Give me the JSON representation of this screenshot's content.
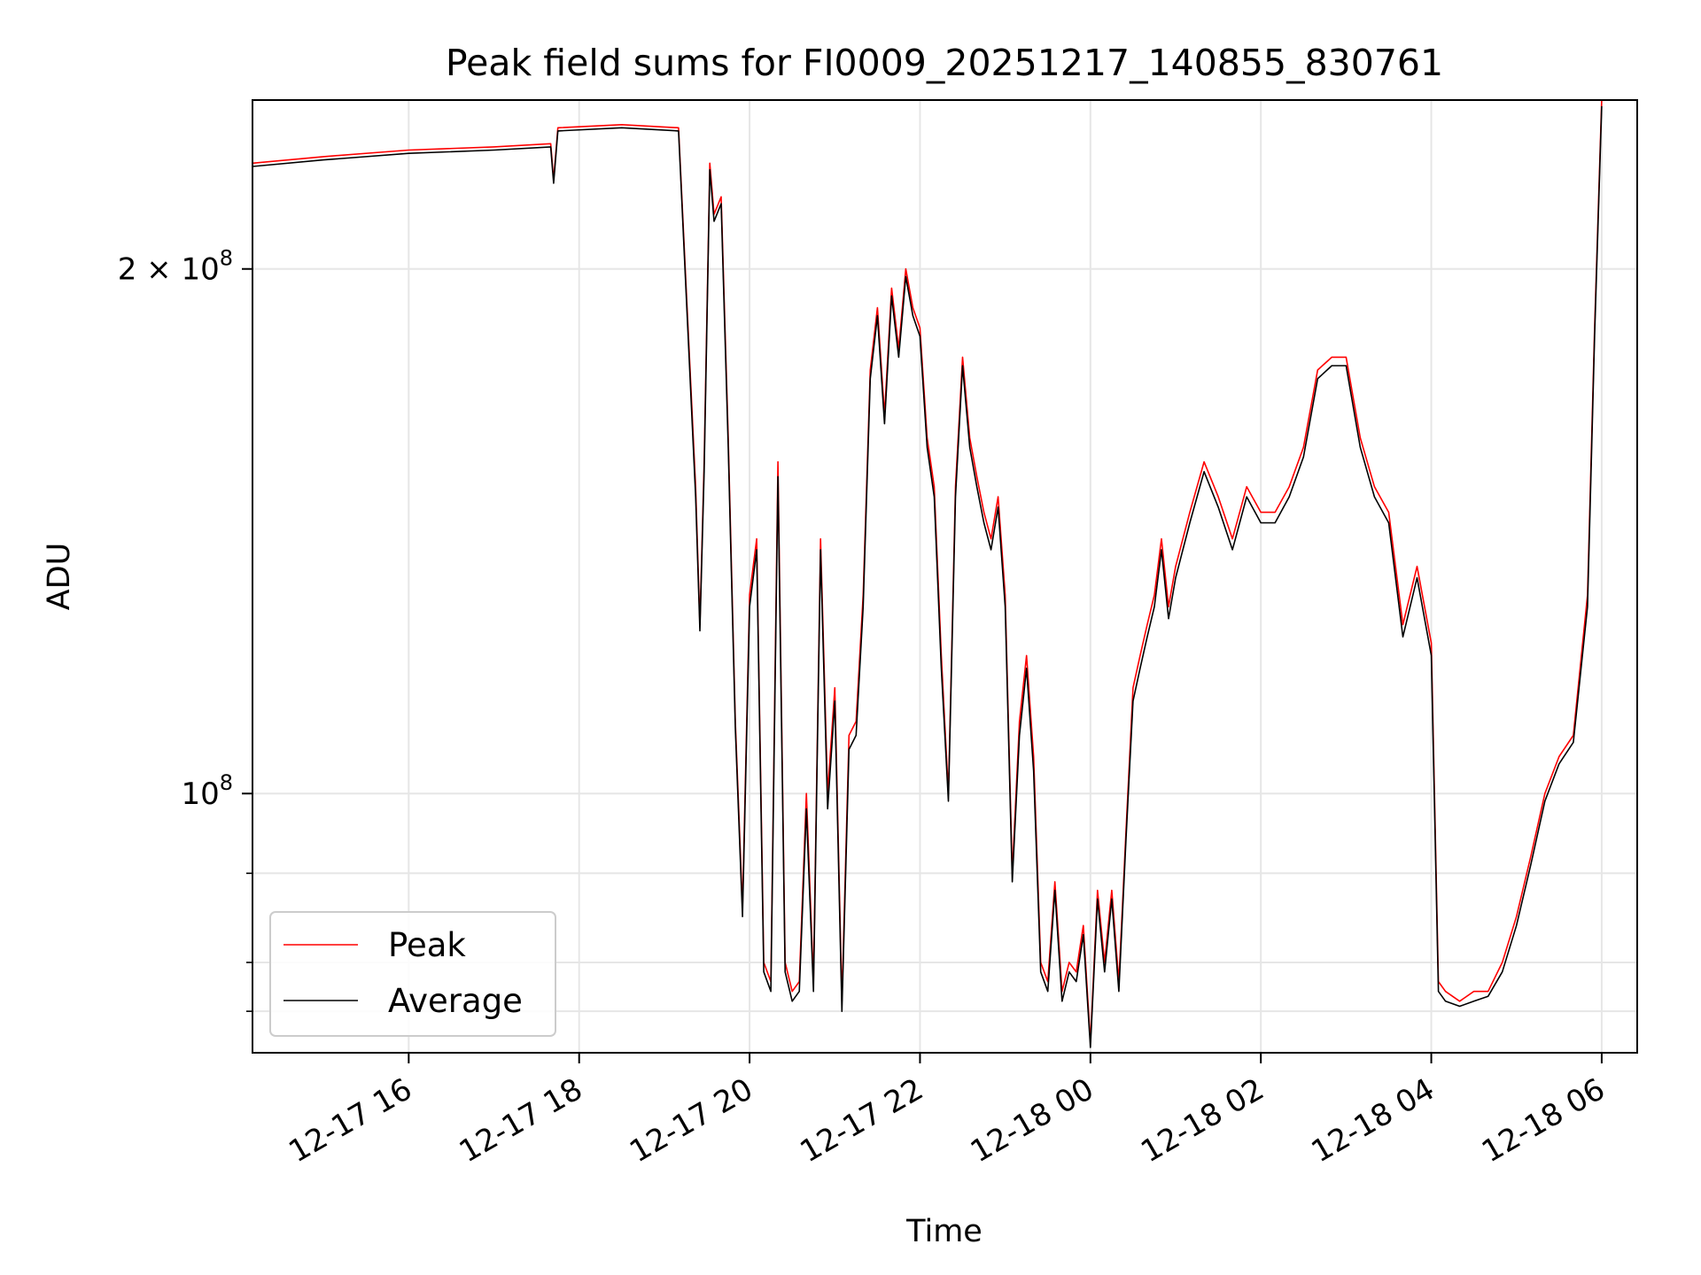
{
  "chart_data": {
    "type": "line",
    "title": "Peak field sums for FI0009_20251217_140855_830761",
    "xlabel": "Time",
    "ylabel": "ADU",
    "y_scale": "log",
    "ylim": [
      71000000,
      250000000
    ],
    "xlim": [
      "2025-12-17 14:10",
      "2025-12-18 06:25"
    ],
    "grid": true,
    "legend_position": "lower-left",
    "x_tick_labels": [
      {
        "t": "2025-12-17 16:00",
        "label": "12-17 16"
      },
      {
        "t": "2025-12-17 18:00",
        "label": "12-17 18"
      },
      {
        "t": "2025-12-17 20:00",
        "label": "12-17 20"
      },
      {
        "t": "2025-12-17 22:00",
        "label": "12-17 22"
      },
      {
        "t": "2025-12-18 00:00",
        "label": "12-18 00"
      },
      {
        "t": "2025-12-18 02:00",
        "label": "12-18 02"
      },
      {
        "t": "2025-12-18 04:00",
        "label": "12-18 04"
      },
      {
        "t": "2025-12-18 06:00",
        "label": "12-18 06"
      }
    ],
    "y_tick_labels": [
      {
        "value": 100000000,
        "base": "10",
        "exp": "8",
        "coef": ""
      },
      {
        "value": 200000000,
        "base": "10",
        "exp": "8",
        "coef": "2 × "
      }
    ],
    "y_minor_ticks": [
      75000000,
      80000000,
      90000000
    ],
    "series": [
      {
        "name": "Peak",
        "color": "#ff0000",
        "x": [
          "2025-12-17 14:10",
          "2025-12-17 15:00",
          "2025-12-17 16:00",
          "2025-12-17 17:00",
          "2025-12-17 17:40",
          "2025-12-17 17:42",
          "2025-12-17 17:45",
          "2025-12-17 18:30",
          "2025-12-17 19:10",
          "2025-12-17 19:22",
          "2025-12-17 19:25",
          "2025-12-17 19:28",
          "2025-12-17 19:32",
          "2025-12-17 19:35",
          "2025-12-17 19:40",
          "2025-12-17 19:45",
          "2025-12-17 19:50",
          "2025-12-17 19:55",
          "2025-12-17 20:00",
          "2025-12-17 20:05",
          "2025-12-17 20:10",
          "2025-12-17 20:15",
          "2025-12-17 20:20",
          "2025-12-17 20:25",
          "2025-12-17 20:30",
          "2025-12-17 20:35",
          "2025-12-17 20:40",
          "2025-12-17 20:45",
          "2025-12-17 20:50",
          "2025-12-17 20:55",
          "2025-12-17 21:00",
          "2025-12-17 21:05",
          "2025-12-17 21:10",
          "2025-12-17 21:15",
          "2025-12-17 21:20",
          "2025-12-17 21:25",
          "2025-12-17 21:30",
          "2025-12-17 21:35",
          "2025-12-17 21:40",
          "2025-12-17 21:45",
          "2025-12-17 21:50",
          "2025-12-17 21:55",
          "2025-12-17 22:00",
          "2025-12-17 22:05",
          "2025-12-17 22:10",
          "2025-12-17 22:15",
          "2025-12-17 22:20",
          "2025-12-17 22:25",
          "2025-12-17 22:30",
          "2025-12-17 22:35",
          "2025-12-17 22:40",
          "2025-12-17 22:45",
          "2025-12-17 22:50",
          "2025-12-17 22:55",
          "2025-12-17 23:00",
          "2025-12-17 23:05",
          "2025-12-17 23:10",
          "2025-12-17 23:15",
          "2025-12-17 23:20",
          "2025-12-17 23:25",
          "2025-12-17 23:30",
          "2025-12-17 23:35",
          "2025-12-17 23:40",
          "2025-12-17 23:45",
          "2025-12-17 23:50",
          "2025-12-17 23:55",
          "2025-12-18 00:00",
          "2025-12-18 00:05",
          "2025-12-18 00:10",
          "2025-12-18 00:15",
          "2025-12-18 00:20",
          "2025-12-18 00:25",
          "2025-12-18 00:30",
          "2025-12-18 00:35",
          "2025-12-18 00:40",
          "2025-12-18 00:45",
          "2025-12-18 00:50",
          "2025-12-18 00:55",
          "2025-12-18 01:00",
          "2025-12-18 01:10",
          "2025-12-18 01:20",
          "2025-12-18 01:30",
          "2025-12-18 01:40",
          "2025-12-18 01:50",
          "2025-12-18 02:00",
          "2025-12-18 02:10",
          "2025-12-18 02:20",
          "2025-12-18 02:30",
          "2025-12-18 02:40",
          "2025-12-18 02:50",
          "2025-12-18 03:00",
          "2025-12-18 03:10",
          "2025-12-18 03:20",
          "2025-12-18 03:30",
          "2025-12-18 03:40",
          "2025-12-18 03:50",
          "2025-12-18 04:00",
          "2025-12-18 04:05",
          "2025-12-18 04:10",
          "2025-12-18 04:20",
          "2025-12-18 04:30",
          "2025-12-18 04:40",
          "2025-12-18 04:50",
          "2025-12-18 05:00",
          "2025-12-18 05:10",
          "2025-12-18 05:20",
          "2025-12-18 05:30",
          "2025-12-18 05:40",
          "2025-12-18 05:50",
          "2025-12-18 05:55",
          "2025-12-18 06:00"
        ],
        "values": [
          230000000,
          232000000,
          234000000,
          235000000,
          236000000,
          225000000,
          241000000,
          242000000,
          241000000,
          150000000,
          125000000,
          155000000,
          230000000,
          215000000,
          220000000,
          160000000,
          110000000,
          86000000,
          130000000,
          140000000,
          80000000,
          78000000,
          155000000,
          80000000,
          77000000,
          78000000,
          100000000,
          78000000,
          140000000,
          100000000,
          115000000,
          76000000,
          108000000,
          110000000,
          130000000,
          175000000,
          190000000,
          165000000,
          195000000,
          180000000,
          200000000,
          190000000,
          185000000,
          160000000,
          150000000,
          120000000,
          100000000,
          150000000,
          178000000,
          160000000,
          152000000,
          145000000,
          140000000,
          148000000,
          130000000,
          90000000,
          110000000,
          120000000,
          105000000,
          80000000,
          78000000,
          89000000,
          77000000,
          80000000,
          79000000,
          84000000,
          72000000,
          88000000,
          80000000,
          88000000,
          78000000,
          95000000,
          115000000,
          120000000,
          125000000,
          130000000,
          140000000,
          128000000,
          135000000,
          145000000,
          155000000,
          148000000,
          140000000,
          150000000,
          145000000,
          145000000,
          150000000,
          158000000,
          175000000,
          178000000,
          178000000,
          160000000,
          150000000,
          145000000,
          125000000,
          135000000,
          122000000,
          78000000,
          77000000,
          76000000,
          77000000,
          77000000,
          80000000,
          85000000,
          92000000,
          100000000,
          105000000,
          108000000,
          130000000,
          185000000,
          250000000
        ]
      },
      {
        "name": "Average",
        "color": "#000000",
        "x": [
          "2025-12-17 14:10",
          "2025-12-17 15:00",
          "2025-12-17 16:00",
          "2025-12-17 17:00",
          "2025-12-17 17:40",
          "2025-12-17 17:42",
          "2025-12-17 17:45",
          "2025-12-17 18:30",
          "2025-12-17 19:10",
          "2025-12-17 19:22",
          "2025-12-17 19:25",
          "2025-12-17 19:28",
          "2025-12-17 19:32",
          "2025-12-17 19:35",
          "2025-12-17 19:40",
          "2025-12-17 19:45",
          "2025-12-17 19:50",
          "2025-12-17 19:55",
          "2025-12-17 20:00",
          "2025-12-17 20:05",
          "2025-12-17 20:10",
          "2025-12-17 20:15",
          "2025-12-17 20:20",
          "2025-12-17 20:25",
          "2025-12-17 20:30",
          "2025-12-17 20:35",
          "2025-12-17 20:40",
          "2025-12-17 20:45",
          "2025-12-17 20:50",
          "2025-12-17 20:55",
          "2025-12-17 21:00",
          "2025-12-17 21:05",
          "2025-12-17 21:10",
          "2025-12-17 21:15",
          "2025-12-17 21:20",
          "2025-12-17 21:25",
          "2025-12-17 21:30",
          "2025-12-17 21:35",
          "2025-12-17 21:40",
          "2025-12-17 21:45",
          "2025-12-17 21:50",
          "2025-12-17 21:55",
          "2025-12-17 22:00",
          "2025-12-17 22:05",
          "2025-12-17 22:10",
          "2025-12-17 22:15",
          "2025-12-17 22:20",
          "2025-12-17 22:25",
          "2025-12-17 22:30",
          "2025-12-17 22:35",
          "2025-12-17 22:40",
          "2025-12-17 22:45",
          "2025-12-17 22:50",
          "2025-12-17 22:55",
          "2025-12-17 23:00",
          "2025-12-17 23:05",
          "2025-12-17 23:10",
          "2025-12-17 23:15",
          "2025-12-17 23:20",
          "2025-12-17 23:25",
          "2025-12-17 23:30",
          "2025-12-17 23:35",
          "2025-12-17 23:40",
          "2025-12-17 23:45",
          "2025-12-17 23:50",
          "2025-12-17 23:55",
          "2025-12-18 00:00",
          "2025-12-18 00:05",
          "2025-12-18 00:10",
          "2025-12-18 00:15",
          "2025-12-18 00:20",
          "2025-12-18 00:25",
          "2025-12-18 00:30",
          "2025-12-18 00:35",
          "2025-12-18 00:40",
          "2025-12-18 00:45",
          "2025-12-18 00:50",
          "2025-12-18 00:55",
          "2025-12-18 01:00",
          "2025-12-18 01:10",
          "2025-12-18 01:20",
          "2025-12-18 01:30",
          "2025-12-18 01:40",
          "2025-12-18 01:50",
          "2025-12-18 02:00",
          "2025-12-18 02:10",
          "2025-12-18 02:20",
          "2025-12-18 02:30",
          "2025-12-18 02:40",
          "2025-12-18 02:50",
          "2025-12-18 03:00",
          "2025-12-18 03:10",
          "2025-12-18 03:20",
          "2025-12-18 03:30",
          "2025-12-18 03:40",
          "2025-12-18 03:50",
          "2025-12-18 04:00",
          "2025-12-18 04:05",
          "2025-12-18 04:10",
          "2025-12-18 04:20",
          "2025-12-18 04:30",
          "2025-12-18 04:40",
          "2025-12-18 04:50",
          "2025-12-18 05:00",
          "2025-12-18 05:10",
          "2025-12-18 05:20",
          "2025-12-18 05:30",
          "2025-12-18 05:40",
          "2025-12-18 05:50",
          "2025-12-18 05:55",
          "2025-12-18 06:00"
        ],
        "values": [
          229000000,
          231000000,
          233000000,
          234000000,
          235000000,
          224000000,
          240000000,
          241000000,
          240000000,
          148000000,
          124000000,
          153000000,
          228000000,
          213000000,
          218000000,
          158000000,
          109000000,
          85000000,
          128000000,
          138000000,
          79000000,
          77000000,
          152000000,
          79000000,
          76000000,
          77000000,
          98000000,
          77000000,
          138000000,
          98000000,
          113000000,
          75000000,
          106000000,
          108000000,
          128000000,
          173000000,
          188000000,
          163000000,
          193000000,
          178000000,
          198000000,
          188000000,
          183000000,
          158000000,
          148000000,
          118000000,
          99000000,
          148000000,
          176000000,
          158000000,
          150000000,
          143000000,
          138000000,
          146000000,
          128000000,
          89000000,
          108000000,
          118000000,
          103000000,
          79000000,
          77000000,
          88000000,
          76000000,
          79000000,
          78000000,
          83000000,
          71500000,
          87000000,
          79000000,
          87000000,
          77000000,
          94000000,
          113000000,
          118000000,
          123000000,
          128000000,
          138000000,
          126000000,
          133000000,
          143000000,
          153000000,
          146000000,
          138000000,
          148000000,
          143000000,
          143000000,
          148000000,
          156000000,
          173000000,
          176000000,
          176000000,
          158000000,
          148000000,
          143000000,
          123000000,
          133000000,
          120000000,
          77000000,
          76000000,
          75500000,
          76000000,
          76500000,
          79000000,
          84000000,
          91000000,
          99000000,
          104000000,
          107000000,
          128000000,
          183000000,
          248000000
        ]
      }
    ]
  }
}
